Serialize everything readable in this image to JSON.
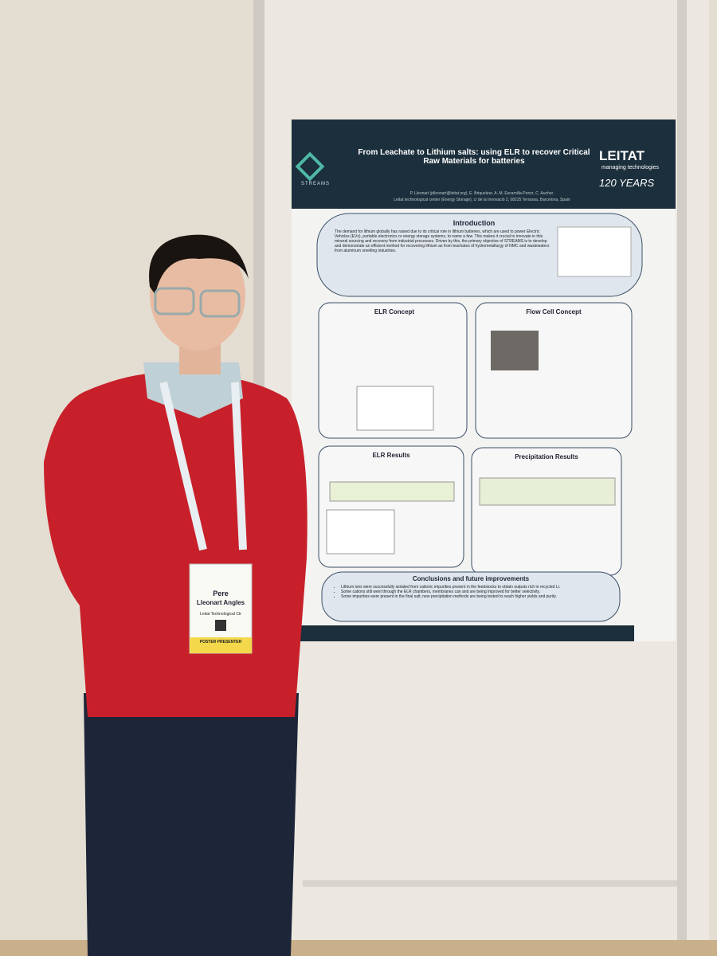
{
  "poster": {
    "logo": "STREAMS",
    "title": "From Leachate to Lithium salts: using ELR to recover Critical Raw Materials for batteries",
    "brand": "LEITAT",
    "brand_tagline": "managing technologies",
    "anniversary": "120 YEARS",
    "authors": "P. Lleonart (plleonart@leitat.org), E. Briqueleur, A. M. Escamilla-Perez, C. Aucher.",
    "affiliation": "Leitat technological center (Energy Storage), c/ de la Innovació 2, 08225 Terrassa, Barcelona, Spain",
    "sections": {
      "introduction": {
        "heading": "Introduction",
        "text": "The demand for lithium globally has raised due to its critical role in lithium batteries, which are used to power Electric Vehicles (EVs), portable electronics or energy storage systems, to name a few. This makes it crucial to innovate in this mineral sourcing and recovery from industrial processes. Driven by this, the primary objective of STREAMS is to develop and demonstrate an efficient method for recovering lithium as from leachates of hydrometallurgy of NMC and wastewaters from aluminum smelting industries."
      },
      "elr_concept": {
        "heading": "ELR Concept"
      },
      "flow_cell": {
        "heading": "Flow Cell Concept"
      },
      "elr_results": {
        "heading": "ELR Results"
      },
      "precipitation": {
        "heading": "Precipitation Results"
      },
      "conclusions": {
        "heading": "Conclusions and future improvements",
        "items": [
          "Lithium ions were successfully isolated from cationic impurities present in the feedstocks to obtain outputs rich in recycled Li.",
          "Some cations still went through the ELR chambers, membranes can and are being improved for better selectivity.",
          "Some impurities were present in the final salt; new precipitation methods are being tested to reach higher yields and purity."
        ]
      }
    }
  },
  "badge": {
    "first_name": "Pere",
    "last_name": "Lleonart Angles",
    "organization": "Leitat Technological Ctr",
    "role": "POSTER PRESENTER"
  }
}
